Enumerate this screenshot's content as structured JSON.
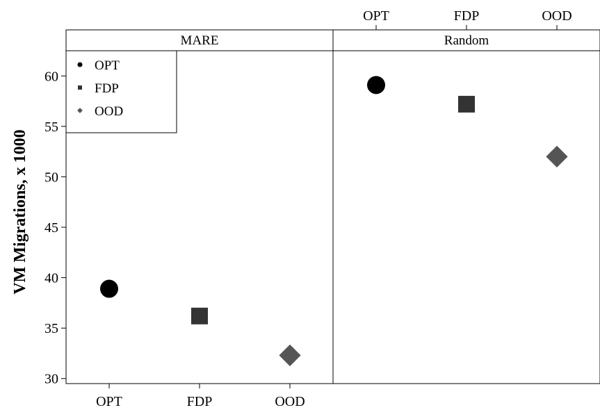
{
  "chart_data": {
    "type": "scatter",
    "ylabel": "VM Migrations, x 1000",
    "ylim": [
      29.5,
      62.5
    ],
    "yticks": [
      30,
      35,
      40,
      45,
      50,
      55,
      60
    ],
    "categories": [
      "OPT",
      "FDP",
      "OOD"
    ],
    "panels": [
      {
        "title": "MARE",
        "x_axis_side": "bottom",
        "values": [
          38.9,
          36.2,
          32.3
        ]
      },
      {
        "title": "Random",
        "x_axis_side": "top",
        "values": [
          59.1,
          57.2,
          52.0
        ]
      }
    ],
    "series": [
      {
        "name": "OPT",
        "marker": "circle",
        "color": "#000000"
      },
      {
        "name": "FDP",
        "marker": "square",
        "color": "#333333"
      },
      {
        "name": "OOD",
        "marker": "diamond",
        "color": "#555555"
      }
    ],
    "legend_position": "top-left",
    "grid": false
  }
}
